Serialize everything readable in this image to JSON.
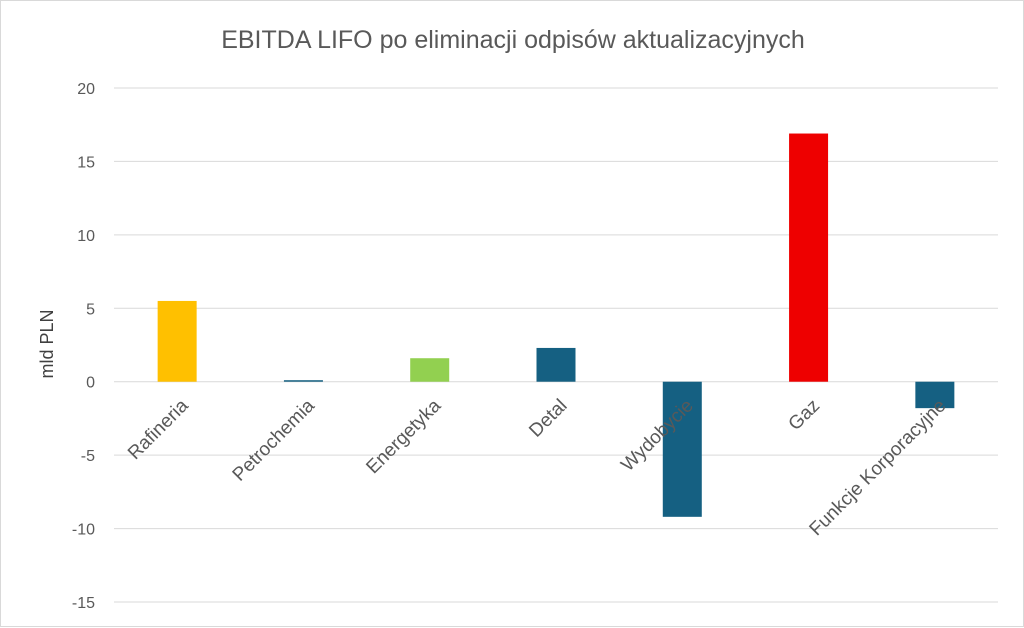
{
  "chart_data": {
    "type": "bar",
    "title": "EBITDA LIFO po eliminacji odpisów aktualizacyjnych",
    "ylabel": "mld PLN",
    "xlabel": "",
    "ylim": [
      -15,
      20
    ],
    "yticks": [
      20,
      15,
      10,
      5,
      0,
      -5,
      -10,
      -15
    ],
    "ytick_labels": [
      "20",
      "15",
      "10",
      "5",
      "0",
      "-5",
      "-10",
      "-15"
    ],
    "grid": true,
    "legend": "none",
    "categories": [
      "Rafineria",
      "Petrochemia",
      "Energetyka",
      "Detal",
      "Wydobycie",
      "Gaz",
      "Funkcje Korporacyjne"
    ],
    "values": [
      5.5,
      0.05,
      1.6,
      2.3,
      -9.2,
      16.9,
      -1.8
    ],
    "colors": [
      "#FFC000",
      "#156082",
      "#92D050",
      "#156082",
      "#156082",
      "#EE0000",
      "#156082"
    ]
  }
}
